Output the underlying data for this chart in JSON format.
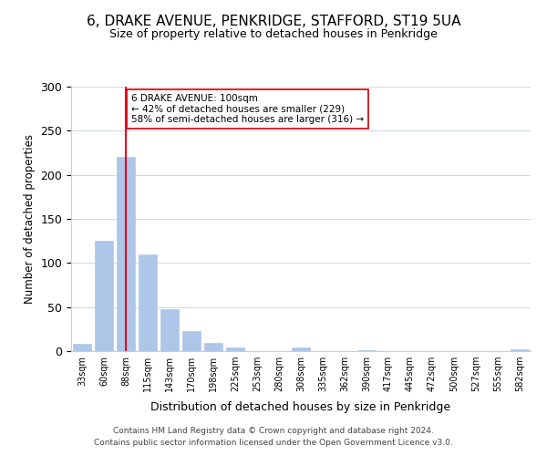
{
  "title1": "6, DRAKE AVENUE, PENKRIDGE, STAFFORD, ST19 5UA",
  "title2": "Size of property relative to detached houses in Penkridge",
  "xlabel": "Distribution of detached houses by size in Penkridge",
  "ylabel": "Number of detached properties",
  "bar_labels": [
    "33sqm",
    "60sqm",
    "88sqm",
    "115sqm",
    "143sqm",
    "170sqm",
    "198sqm",
    "225sqm",
    "253sqm",
    "280sqm",
    "308sqm",
    "335sqm",
    "362sqm",
    "390sqm",
    "417sqm",
    "445sqm",
    "472sqm",
    "500sqm",
    "527sqm",
    "555sqm",
    "582sqm"
  ],
  "bar_values": [
    8,
    125,
    220,
    110,
    48,
    23,
    9,
    4,
    0,
    0,
    4,
    0,
    0,
    1,
    0,
    0,
    0,
    0,
    0,
    0,
    2
  ],
  "bar_color": "#aec6e8",
  "bar_edge_color": "#aec6e8",
  "vline_x": 2,
  "vline_color": "#e8001c",
  "annotation_text": "6 DRAKE AVENUE: 100sqm\n← 42% of detached houses are smaller (229)\n58% of semi-detached houses are larger (316) →",
  "annotation_box_color": "#ffffff",
  "annotation_box_edge_color": "#cc0000",
  "ylim": [
    0,
    300
  ],
  "yticks": [
    0,
    50,
    100,
    150,
    200,
    250,
    300
  ],
  "footnote": "Contains HM Land Registry data © Crown copyright and database right 2024.\nContains public sector information licensed under the Open Government Licence v3.0.",
  "background_color": "#ffffff",
  "grid_color": "#d0dce8"
}
